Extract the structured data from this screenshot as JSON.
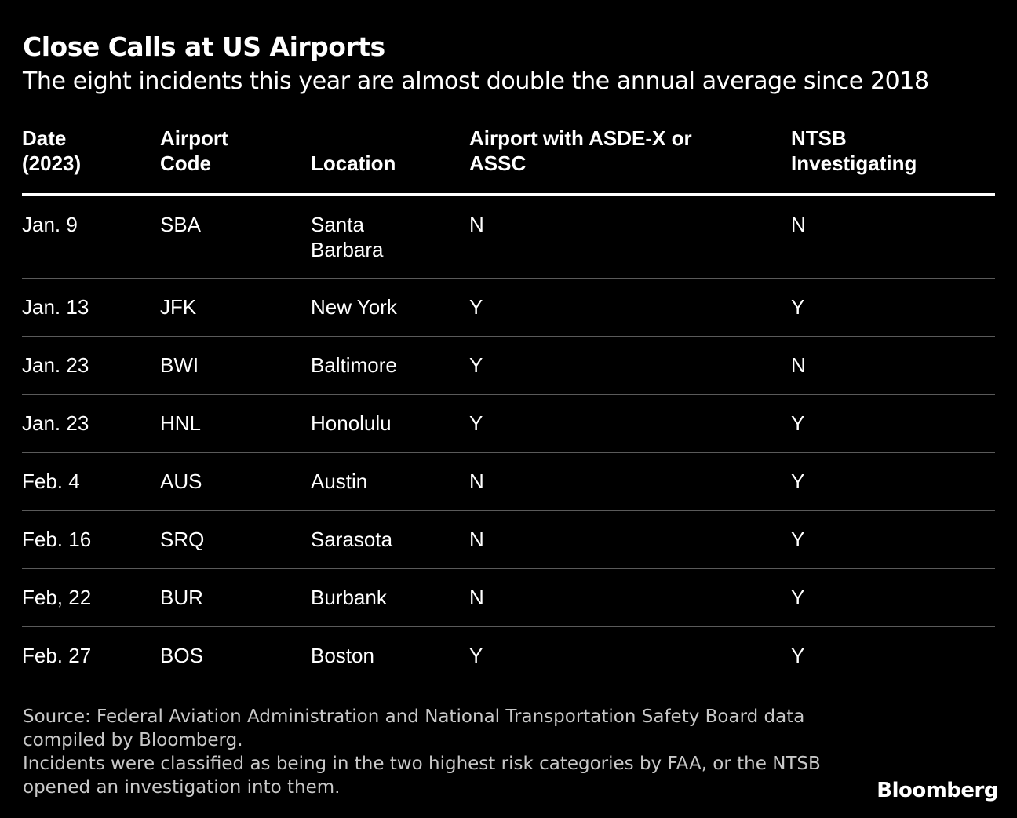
{
  "title": "Close Calls at US Airports",
  "subtitle": "The eight incidents this year are almost double the annual average since 2018",
  "chart_data": {
    "type": "table",
    "columns": [
      [
        "Date",
        "(2023)"
      ],
      [
        "Airport",
        "Code"
      ],
      [
        "Location"
      ],
      [
        "Airport with ASDE-X or",
        "ASSC"
      ],
      [
        "NTSB",
        "Investigating"
      ]
    ],
    "rows": [
      [
        "Jan. 9",
        "SBA",
        "Santa Barbara",
        "N",
        "N"
      ],
      [
        "Jan. 13",
        "JFK",
        "New York",
        "Y",
        "Y"
      ],
      [
        "Jan. 23",
        "BWI",
        "Baltimore",
        "Y",
        "N"
      ],
      [
        "Jan. 23",
        "HNL",
        "Honolulu",
        "Y",
        "Y"
      ],
      [
        "Feb. 4",
        "AUS",
        "Austin",
        "N",
        "Y"
      ],
      [
        "Feb. 16",
        "SRQ",
        "Sarasota",
        "N",
        "Y"
      ],
      [
        "Feb, 22",
        "BUR",
        "Burbank",
        "N",
        "Y"
      ],
      [
        "Feb. 27",
        "BOS",
        "Boston",
        "Y",
        "Y"
      ]
    ]
  },
  "footnote": {
    "source": "Source: Federal Aviation Administration and National Transportation Safety Board data compiled by Bloomberg.",
    "note": "Incidents were classified as being in the two highest risk categories by FAA, or the NTSB opened an investigation into them."
  },
  "brand": "Bloomberg",
  "colors": {
    "background": "#000000",
    "text": "#ffffff",
    "footnote_text": "#c8c8c8",
    "row_divider": "#5a5a5a"
  }
}
